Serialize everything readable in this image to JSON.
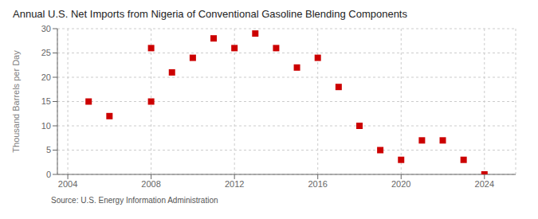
{
  "chart_data": {
    "type": "scatter",
    "title": "Annual U.S. Net Imports from Nigeria of Conventional Gasoline Blending Components",
    "ylabel": "Thousand Barrels per Day",
    "source": "Source: U.S. Energy Information Administration",
    "x": [
      2005,
      2006,
      2008,
      2008,
      2009,
      2010,
      2011,
      2012,
      2013,
      2014,
      2015,
      2016,
      2017,
      2018,
      2019,
      2020,
      2021,
      2022,
      2023,
      2024
    ],
    "values": [
      15,
      12,
      15,
      26,
      21,
      24,
      28,
      26,
      29,
      26,
      22,
      24,
      18,
      10,
      5,
      3,
      7,
      7,
      3,
      0
    ],
    "color": "#cc0000",
    "marker": "square",
    "xlim": [
      2003.5,
      2025.5
    ],
    "ylim": [
      0,
      30
    ],
    "xticks": [
      2004,
      2008,
      2012,
      2016,
      2020,
      2024
    ],
    "yticks": [
      0,
      5,
      10,
      15,
      20,
      25,
      30
    ],
    "grid": true
  }
}
